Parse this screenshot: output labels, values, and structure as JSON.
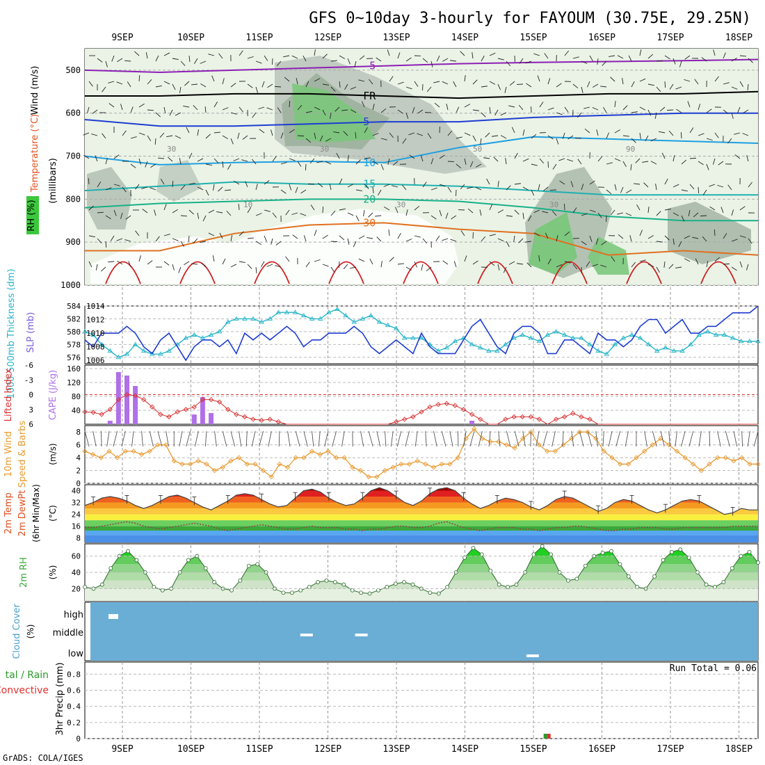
{
  "title": "GFS 0~10day 3-hourly for FAYOUM (30.75E, 29.25N)",
  "footer": "GrADS: COLA/IGES",
  "days": [
    "9SEP",
    "10SEP",
    "11SEP",
    "12SEP",
    "13SEP",
    "14SEP",
    "15SEP",
    "16SEP",
    "17SEP",
    "18SEP"
  ],
  "colors": {
    "purple": "#8c1fb4",
    "blue": "#1e3cd2",
    "cyan": "#26b5c8",
    "rh_green": "#3cc83c",
    "precip_green": "#2a9a2a",
    "precip_red": "#e03030",
    "cloud_bg": "#6aaed6",
    "cape_bar": "#b070e8",
    "li_red": "#d83030",
    "wind_orange": "#e89a30",
    "temp_dark": "#a00000",
    "temp_red": "#e02020",
    "temp_orange": "#f59a20",
    "temp_yellow": "#f8f040",
    "dew_green": "#40b040",
    "dew_blue": "#4a90e8"
  },
  "labels": {
    "upper_y1": "Wind (m/s)",
    "upper_y2": "Temperature (°C)",
    "upper_y3": "RH (%)",
    "upper_y4": "(millibars)",
    "thk_label": "1000-500mb Thickness (dm)",
    "slp_label": "SLP (mb)",
    "li_label": "Lifted Index",
    "cape_label": "CAPE (J/kg)",
    "wind10_label": "10m Wind",
    "wind10_sub": "Speed & Barbs",
    "wind10_unit": "(m/s)",
    "t2m_label": "2m Temp",
    "t2m_sub1": "2m DewPt",
    "t2m_sub2": "(6hr Min/Max)",
    "t2m_unit": "(°C)",
    "rh2m_label": "2m RH",
    "rh2m_unit": "(%)",
    "cloud_label": "Cloud Cover",
    "cloud_unit": "(%)",
    "cloud_high": "high",
    "cloud_middle": "middle",
    "cloud_low": "low",
    "precip_label_a": "tal / Rain",
    "precip_label_b": "Convective",
    "precip_y": "3hr Precip (mm)",
    "run_total": "Run Total = 0.06"
  },
  "chart_data": [
    {
      "type": "contour",
      "panel": "upper-air",
      "ylabel": "(millibars)",
      "y_ticks": [
        500,
        600,
        700,
        800,
        900,
        1000
      ],
      "ylim": [
        1000,
        450
      ],
      "contours": [
        {
          "name": "-5",
          "level": -5,
          "pressure": [
            500,
            505,
            500,
            495,
            490,
            485,
            482,
            480,
            478,
            475
          ]
        },
        {
          "name": "FR",
          "level": 0,
          "pressure": [
            560,
            560,
            555,
            555,
            560,
            565,
            560,
            555,
            555,
            550
          ]
        },
        {
          "name": "5",
          "level": 5,
          "pressure": [
            615,
            630,
            630,
            625,
            620,
            620,
            610,
            605,
            600,
            600
          ]
        },
        {
          "name": "10",
          "level": 10,
          "pressure": [
            700,
            720,
            715,
            712,
            715,
            680,
            655,
            660,
            665,
            670
          ]
        },
        {
          "name": "15",
          "level": 15,
          "pressure": [
            780,
            770,
            760,
            765,
            765,
            770,
            780,
            790,
            790,
            790
          ]
        },
        {
          "name": "20",
          "level": 20,
          "pressure": [
            820,
            810,
            805,
            800,
            800,
            805,
            820,
            840,
            850,
            850
          ]
        },
        {
          "name": "30",
          "level": 30,
          "pressure": [
            920,
            920,
            880,
            860,
            855,
            870,
            880,
            930,
            920,
            930
          ]
        }
      ],
      "rh_labels": [
        "30",
        "10",
        "30",
        "30",
        "50",
        "30",
        "90"
      ]
    },
    {
      "type": "line",
      "panel": "thickness-slp",
      "y_left_ticks": [
        576,
        578,
        580,
        582,
        584
      ],
      "y_right_ticks": [
        1006,
        1008,
        1010,
        1012,
        1014
      ],
      "series": [
        {
          "name": "1000-500mb Thickness (dm)",
          "axis": "left",
          "values": [
            580,
            579.5,
            578,
            577,
            576,
            576.5,
            578,
            577,
            576.5,
            576.5,
            577,
            578,
            579,
            579.5,
            579,
            579.5,
            580,
            581.5,
            582,
            582,
            582,
            581.5,
            582,
            583,
            583,
            583,
            582.5,
            582,
            582,
            583,
            583.5,
            582.5,
            581.5,
            582,
            582.5,
            581.5,
            581,
            580.5,
            579,
            579,
            579,
            578,
            577,
            577.5,
            578.5,
            579,
            578,
            577.5,
            577,
            577,
            578,
            579,
            579.5,
            579,
            578.5,
            579.5,
            580,
            579.5,
            579,
            579,
            578,
            577,
            576.5,
            578,
            579,
            579.5,
            579,
            578,
            577,
            577.5,
            577,
            577,
            578,
            579.5,
            580,
            579.5,
            579.5,
            579,
            578.5,
            578.5,
            578.5
          ]
        },
        {
          "name": "SLP (mb)",
          "axis": "right",
          "values": [
            1009,
            1008,
            1010,
            1010,
            1010,
            1011,
            1010,
            1008,
            1007,
            1009,
            1010,
            1008,
            1006,
            1008,
            1009,
            1009,
            1008,
            1009,
            1007,
            1010,
            1009,
            1010,
            1009,
            1010,
            1011,
            1010,
            1008,
            1009,
            1009,
            1010,
            1010,
            1010,
            1011,
            1010,
            1008,
            1007,
            1008,
            1009,
            1008,
            1007,
            1010,
            1008,
            1007,
            1007,
            1007,
            1009,
            1011,
            1012,
            1010,
            1008,
            1007,
            1010,
            1011,
            1011,
            1010,
            1007,
            1007,
            1009,
            1009,
            1008,
            1007,
            1010,
            1009,
            1009,
            1008,
            1009,
            1011,
            1012,
            1012,
            1010,
            1011,
            1012,
            1010,
            1010,
            1011,
            1011,
            1012,
            1013,
            1013,
            1013,
            1014
          ]
        }
      ]
    },
    {
      "type": "bar+line",
      "panel": "lifted-index-cape",
      "li_ticks": [
        -6,
        -3,
        0,
        3,
        6
      ],
      "cape_ticks": [
        40,
        80,
        120,
        160
      ],
      "cape": [
        0,
        0,
        0,
        10,
        150,
        140,
        110,
        0,
        0,
        0,
        0,
        0,
        0,
        28,
        78,
        32,
        0,
        0,
        0,
        0,
        0,
        0,
        0,
        0,
        0,
        0,
        0,
        0,
        0,
        0,
        0,
        0,
        0,
        0,
        0,
        0,
        0,
        0,
        0,
        0,
        0,
        0,
        0,
        0,
        0,
        0,
        10,
        0,
        0,
        0,
        0,
        0,
        0,
        0,
        0,
        0,
        0,
        0,
        0,
        0,
        0,
        0,
        0,
        0,
        0,
        0,
        0,
        0,
        0,
        0,
        0,
        0,
        0,
        0,
        0,
        0,
        0,
        0,
        0,
        0,
        0
      ],
      "lifted_index": [
        3.5,
        3.6,
        4,
        3,
        1,
        0,
        0.2,
        1,
        2.5,
        4,
        4.5,
        3.5,
        3,
        2.5,
        1,
        1,
        1.5,
        3,
        4,
        4.5,
        5,
        5.2,
        5,
        5.5,
        6,
        6.5,
        6,
        6.5,
        6,
        6.5,
        6,
        6.5,
        6,
        6.5,
        6,
        6.5,
        6,
        5.5,
        5,
        4.5,
        3.5,
        2.5,
        2,
        1.8,
        2.2,
        3,
        4,
        5,
        6,
        6.5,
        5,
        4.5,
        4.5,
        4.5,
        5,
        6,
        5,
        4.5,
        3.8,
        4.5,
        5,
        6,
        6.5,
        6.5,
        6.5,
        6.5,
        6.5,
        6.5,
        6.5,
        6.5,
        6.5,
        6.5,
        6.5,
        6.5,
        6.5,
        6.5,
        6.5,
        6.5,
        6.5,
        6.5,
        6
      ]
    },
    {
      "type": "line",
      "panel": "10m-wind",
      "y_ticks": [
        0,
        2,
        4,
        6,
        8
      ],
      "series": [
        {
          "name": "Speed",
          "values": [
            5,
            4.5,
            4,
            5,
            4,
            5,
            5,
            4.5,
            5,
            6,
            6,
            3.5,
            3,
            3,
            3.5,
            3,
            2,
            2.5,
            3.5,
            4,
            3,
            3,
            2,
            1,
            3,
            2.5,
            4,
            4,
            5,
            4.5,
            5,
            4,
            4,
            2.5,
            2,
            1,
            1,
            2,
            2.5,
            3,
            3,
            3.5,
            3,
            2.5,
            3,
            3,
            4,
            7,
            8.5,
            7,
            6.5,
            6.5,
            6,
            5.5,
            7,
            8,
            6,
            5,
            5,
            6,
            7,
            8,
            8,
            7,
            5,
            4,
            3,
            3,
            4,
            5,
            6,
            7,
            6,
            5,
            4,
            3,
            2,
            3,
            4,
            4,
            3.5,
            4,
            3,
            3
          ]
        }
      ]
    },
    {
      "type": "area",
      "panel": "2m-temp",
      "y_ticks": [
        8,
        16,
        24,
        32,
        40
      ],
      "series": [
        {
          "name": "2m Temp",
          "values": [
            30,
            32,
            35,
            36,
            35,
            33,
            30,
            28,
            30,
            33,
            36,
            37,
            35,
            32,
            29,
            27,
            30,
            33,
            37,
            38,
            37,
            34,
            31,
            29,
            30,
            35,
            40,
            41,
            39,
            35,
            32,
            30,
            31,
            35,
            40,
            42,
            40,
            36,
            32,
            30,
            33,
            38,
            41,
            42,
            40,
            35,
            31,
            28,
            30,
            33,
            35,
            34,
            32,
            29,
            27,
            30,
            34,
            36,
            35,
            32,
            29,
            26,
            28,
            32,
            34,
            33,
            30,
            27,
            25,
            27,
            30,
            33,
            34,
            33,
            30,
            27,
            24,
            25,
            28,
            27,
            27
          ]
        },
        {
          "name": "2m DewPt",
          "values": [
            15,
            15,
            16,
            17,
            18,
            19,
            18,
            16,
            15,
            14,
            15,
            16,
            17,
            18,
            17,
            16,
            14,
            13,
            14,
            15,
            16,
            17,
            16,
            15,
            14,
            14,
            15,
            16,
            15,
            15,
            15,
            14,
            14,
            13,
            14,
            14,
            15,
            16,
            16,
            15,
            15,
            16,
            18,
            19,
            17,
            15,
            14,
            13,
            14,
            15,
            15,
            15,
            14,
            14,
            13,
            14,
            15,
            15,
            16,
            16,
            15,
            14,
            13,
            13,
            14,
            14,
            15,
            15,
            15,
            14,
            14,
            15,
            15,
            15,
            15,
            15,
            15,
            16,
            16,
            16,
            16
          ]
        }
      ]
    },
    {
      "type": "area",
      "panel": "2m-rh",
      "y_ticks": [
        20,
        40,
        60
      ],
      "series": [
        {
          "name": "2m RH",
          "values": [
            22,
            20,
            25,
            45,
            60,
            66,
            55,
            40,
            22,
            18,
            20,
            40,
            55,
            60,
            45,
            28,
            20,
            18,
            30,
            48,
            50,
            40,
            20,
            15,
            15,
            18,
            22,
            28,
            30,
            28,
            25,
            18,
            15,
            14,
            18,
            22,
            26,
            28,
            25,
            20,
            15,
            14,
            22,
            40,
            58,
            70,
            62,
            42,
            25,
            22,
            25,
            40,
            62,
            72,
            62,
            40,
            30,
            32,
            48,
            60,
            64,
            66,
            50,
            35,
            22,
            20,
            35,
            55,
            65,
            68,
            58,
            40,
            25,
            22,
            28,
            45,
            60,
            65,
            52
          ]
        }
      ]
    },
    {
      "type": "heatmap",
      "panel": "cloud-cover",
      "rows": [
        "high",
        "middle",
        "low"
      ],
      "cells": [
        {
          "row": "high",
          "day_index": 0,
          "value": "high"
        },
        {
          "row": "middle",
          "day_index": 2.8,
          "value": "middle"
        },
        {
          "row": "middle",
          "day_index": 3.6,
          "value": "middle"
        },
        {
          "row": "low",
          "day_index": 6.1,
          "value": "low"
        }
      ]
    },
    {
      "type": "bar",
      "panel": "precip",
      "y_ticks": [
        0,
        0.2,
        0.4,
        0.6,
        0.8
      ],
      "ylim": [
        0,
        0.95
      ],
      "series": [
        {
          "name": "Rain",
          "values": [
            {
              "day_index": 6.2,
              "value": 0.06
            }
          ]
        },
        {
          "name": "Convective",
          "values": [
            {
              "day_index": 6.2,
              "value": 0.06
            }
          ]
        }
      ]
    }
  ]
}
